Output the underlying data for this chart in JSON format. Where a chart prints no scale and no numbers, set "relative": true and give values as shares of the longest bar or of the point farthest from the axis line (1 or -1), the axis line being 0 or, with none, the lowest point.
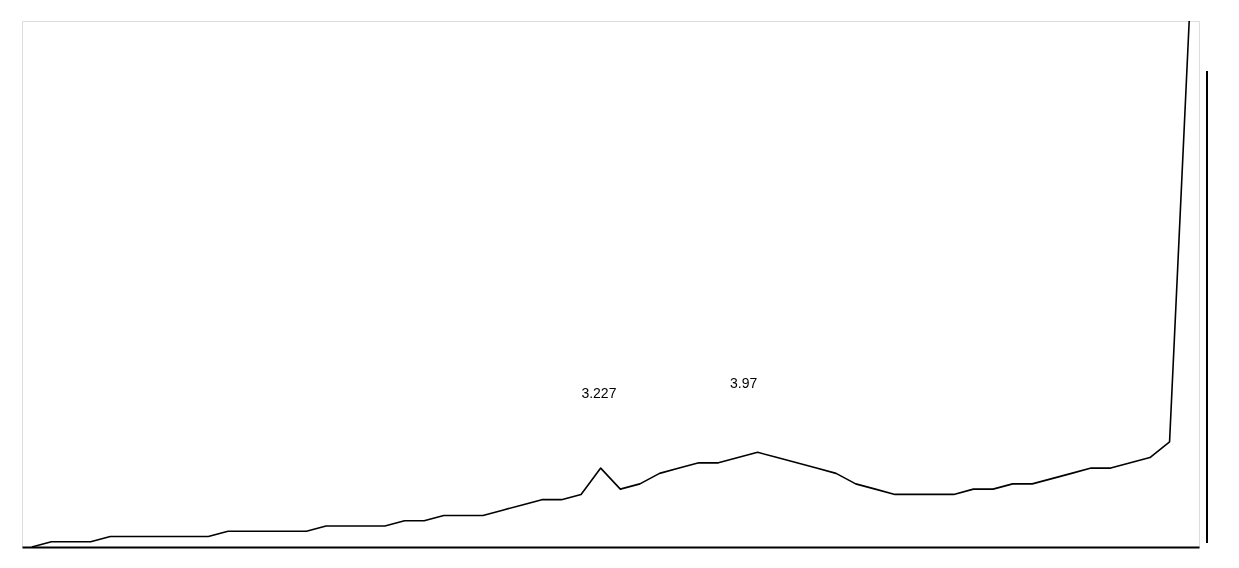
{
  "chart_data": {
    "type": "line",
    "relative": true,
    "categories": [
      null,
      null,
      null,
      null,
      null,
      null,
      null,
      null,
      null,
      null,
      null,
      null,
      null,
      null,
      null,
      null,
      null,
      null,
      null,
      null,
      null,
      null,
      null,
      null,
      null,
      null,
      null,
      null,
      null,
      null,
      null,
      null,
      null,
      null,
      null,
      null,
      null,
      null,
      null,
      null,
      null,
      null,
      null,
      null,
      null,
      null,
      null,
      null,
      null,
      null,
      null,
      null,
      null,
      null,
      null,
      null,
      null,
      null,
      null,
      null
    ],
    "series": [
      {
        "color": "#000000",
        "values": [
          0.0,
          0.01,
          0.01,
          0.01,
          0.02,
          0.02,
          0.02,
          0.02,
          0.02,
          0.02,
          0.03,
          0.03,
          0.03,
          0.03,
          0.03,
          0.04,
          0.04,
          0.04,
          0.04,
          0.05,
          0.05,
          0.06,
          0.06,
          0.06,
          0.07,
          0.08,
          0.09,
          0.09,
          0.1,
          0.15,
          0.11,
          0.12,
          0.14,
          0.15,
          0.16,
          0.16,
          0.17,
          0.18,
          0.17,
          0.16,
          0.15,
          0.14,
          0.12,
          0.11,
          0.1,
          0.1,
          0.1,
          0.1,
          0.11,
          0.11,
          0.12,
          0.12,
          0.13,
          0.14,
          0.15,
          0.15,
          0.16,
          0.17,
          0.2,
          1
        ]
      }
    ],
    "annotations": [
      "3.227",
      "3.97"
    ],
    "tick_labels": false,
    "grid": false,
    "marker": "none",
    "line_style": "solid"
  }
}
